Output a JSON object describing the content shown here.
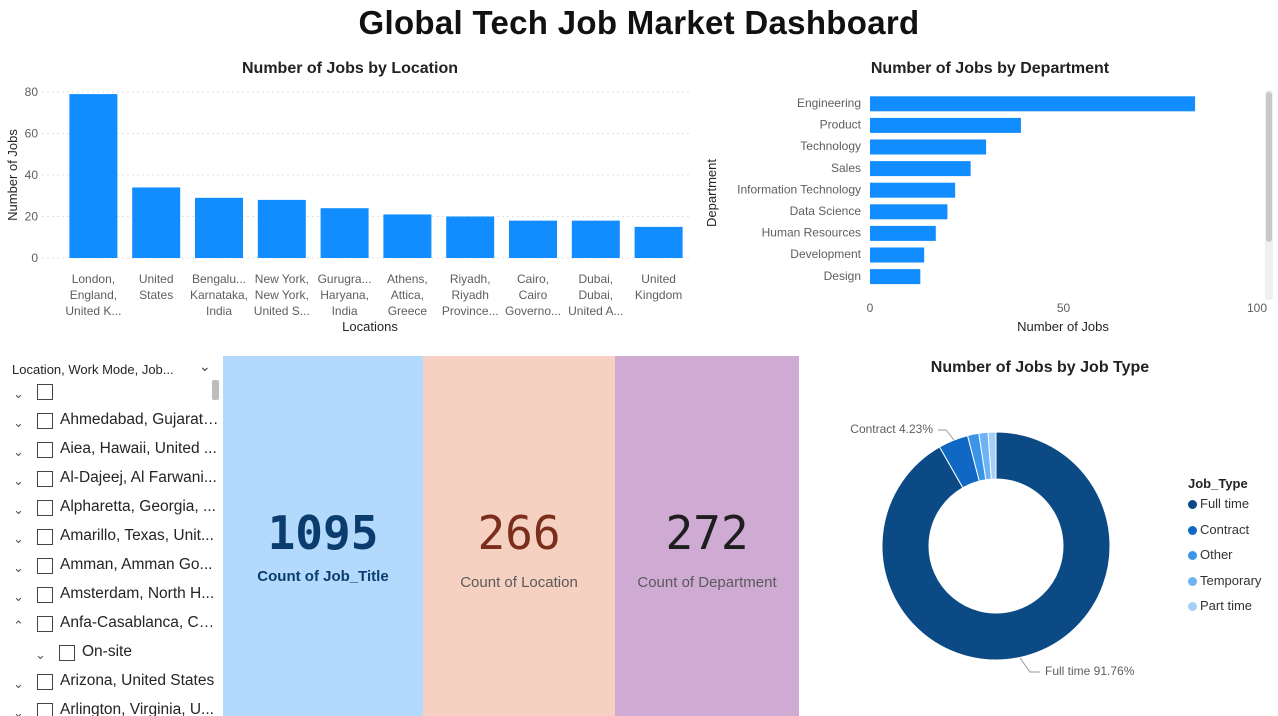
{
  "page": {
    "title": "Global Tech Job Market Dashboard"
  },
  "colors": {
    "bar": "#118dff",
    "card_job_title_bg": "#b3d9fc",
    "card_location_bg": "#f6d0c0",
    "card_department_bg": "#cfabd4",
    "card_job_title_text": "#0b3c6e",
    "card_location_text": "#7a2e1c",
    "card_department_text": "#1e1e1e",
    "donut": [
      "#0b4a85",
      "#1168c4",
      "#3a94e8",
      "#6eb3f5",
      "#a3cff8"
    ]
  },
  "location_chart": {
    "title": "Number of Jobs by Location",
    "xlabel": "Locations",
    "ylabel": "Number of Jobs",
    "ticks": [
      "0",
      "20",
      "40",
      "60",
      "80"
    ],
    "category_lines": [
      [
        "London,",
        "England,",
        "United K..."
      ],
      [
        "United",
        "States"
      ],
      [
        "Bengalu...",
        "Karnataka,",
        "India"
      ],
      [
        "New York,",
        "New York,",
        "United S..."
      ],
      [
        "Gurugra...",
        "Haryana,",
        "India"
      ],
      [
        "Athens,",
        "Attica,",
        "Greece"
      ],
      [
        "Riyadh,",
        "Riyadh",
        "Province..."
      ],
      [
        "Cairo,",
        "Cairo",
        "Governo..."
      ],
      [
        "Dubai,",
        "Dubai,",
        "United A..."
      ],
      [
        "United",
        "Kingdom"
      ]
    ]
  },
  "department_chart": {
    "title": "Number of Jobs by Department",
    "xlabel": "Number of Jobs",
    "ylabel": "Department",
    "ticks": [
      "0",
      "50",
      "100"
    ]
  },
  "job_type_chart": {
    "title": "Number of Jobs by Job Type",
    "label_contract": "Contract 4.23%",
    "label_fulltime": "Full time 91.76%",
    "legend_title": "Job_Type",
    "legend": [
      "Full time",
      "Contract",
      "Other",
      "Temporary",
      "Part time"
    ]
  },
  "cards": [
    {
      "value": "1095",
      "label": "Count of Job_Title"
    },
    {
      "value": "266",
      "label": "Count of Location"
    },
    {
      "value": "272",
      "label": "Count of Department"
    }
  ],
  "slicer": {
    "header": "Location, Work Mode, Job...",
    "items": [
      {
        "label": "",
        "expander": "down",
        "indent": 0
      },
      {
        "label": "Ahmedabad, Gujarat,...",
        "expander": "down",
        "indent": 0
      },
      {
        "label": "Aiea, Hawaii, United ...",
        "expander": "down",
        "indent": 0
      },
      {
        "label": "Al-Dajeej, Al Farwani...",
        "expander": "down",
        "indent": 0
      },
      {
        "label": "Alpharetta, Georgia, ...",
        "expander": "down",
        "indent": 0
      },
      {
        "label": "Amarillo, Texas, Unit...",
        "expander": "down",
        "indent": 0
      },
      {
        "label": "Amman, Amman Go...",
        "expander": "down",
        "indent": 0
      },
      {
        "label": "Amsterdam, North H...",
        "expander": "down",
        "indent": 0
      },
      {
        "label": "Anfa-Casablanca, Ca...",
        "expander": "up",
        "indent": 0
      },
      {
        "label": "On-site",
        "expander": "down",
        "indent": 1
      },
      {
        "label": "Arizona, United States",
        "expander": "down",
        "indent": 0
      },
      {
        "label": "Arlington, Virginia, U...",
        "expander": "down",
        "indent": 0
      }
    ]
  },
  "chart_data": [
    {
      "type": "bar",
      "title": "Number of Jobs by Location",
      "xlabel": "Locations",
      "ylabel": "Number of Jobs",
      "categories": [
        "London, England, United K...",
        "United States",
        "Bengalu... Karnataka, India",
        "New York, New York, United S...",
        "Gurugra... Haryana, India",
        "Athens, Attica, Greece",
        "Riyadh, Riyadh Province...",
        "Cairo, Cairo Governo...",
        "Dubai, Dubai, United A...",
        "United Kingdom"
      ],
      "values": [
        79,
        34,
        29,
        28,
        24,
        21,
        20,
        18,
        18,
        15
      ],
      "ylim": [
        0,
        80
      ],
      "grid": true
    },
    {
      "type": "bar",
      "orientation": "horizontal",
      "title": "Number of Jobs by Department",
      "xlabel": "Number of Jobs",
      "ylabel": "Department",
      "categories": [
        "Engineering",
        "Product",
        "Technology",
        "Sales",
        "Information Technology",
        "Data Science",
        "Human Resources",
        "Development",
        "Design"
      ],
      "values": [
        84,
        39,
        30,
        26,
        22,
        20,
        17,
        14,
        13
      ],
      "xlim": [
        0,
        100
      ]
    },
    {
      "type": "pie",
      "donut": true,
      "title": "Number of Jobs by Job Type",
      "categories": [
        "Full time",
        "Contract",
        "Other",
        "Temporary",
        "Part time"
      ],
      "values": [
        91.76,
        4.23,
        1.6,
        1.3,
        1.11
      ],
      "unit": "%",
      "legend": "right"
    }
  ]
}
